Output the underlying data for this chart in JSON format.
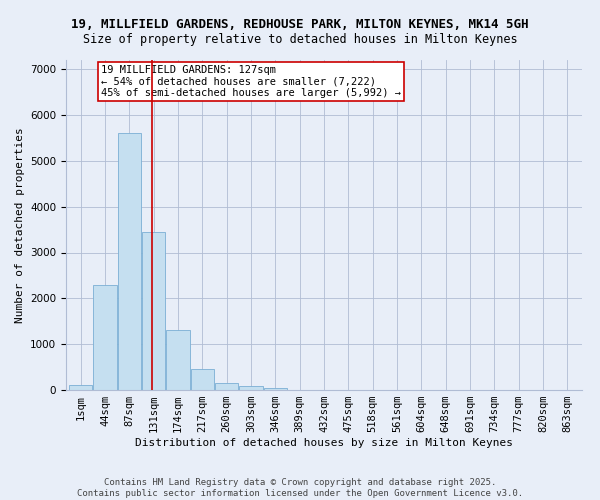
{
  "title1": "19, MILLFIELD GARDENS, REDHOUSE PARK, MILTON KEYNES, MK14 5GH",
  "title2": "Size of property relative to detached houses in Milton Keynes",
  "xlabel": "Distribution of detached houses by size in Milton Keynes",
  "ylabel": "Number of detached properties",
  "footer1": "Contains HM Land Registry data © Crown copyright and database right 2025.",
  "footer2": "Contains public sector information licensed under the Open Government Licence v3.0.",
  "bin_labels": [
    "1sqm",
    "44sqm",
    "87sqm",
    "131sqm",
    "174sqm",
    "217sqm",
    "260sqm",
    "303sqm",
    "346sqm",
    "389sqm",
    "432sqm",
    "475sqm",
    "518sqm",
    "561sqm",
    "604sqm",
    "648sqm",
    "691sqm",
    "734sqm",
    "777sqm",
    "820sqm",
    "863sqm"
  ],
  "bin_values": [
    100,
    2300,
    5600,
    3450,
    1300,
    450,
    150,
    80,
    50,
    0,
    0,
    0,
    0,
    0,
    0,
    0,
    0,
    0,
    0,
    0,
    0
  ],
  "bar_color": "#c5dff0",
  "bar_edgecolor": "#7bafd4",
  "bar_alpha": 1.0,
  "grid_color": "#b0bcd4",
  "bg_color": "#e8eef8",
  "vline_color": "#cc0000",
  "vline_x_index": 2.93,
  "annotation_text": "19 MILLFIELD GARDENS: 127sqm\n← 54% of detached houses are smaller (7,222)\n45% of semi-detached houses are larger (5,992) →",
  "annotation_box_color": "white",
  "annotation_box_edgecolor": "#cc0000",
  "ylim": [
    0,
    7200
  ],
  "yticks": [
    0,
    1000,
    2000,
    3000,
    4000,
    5000,
    6000,
    7000
  ],
  "title1_fontsize": 9,
  "title2_fontsize": 8.5,
  "axis_label_fontsize": 8,
  "tick_fontsize": 7.5,
  "annotation_fontsize": 7.5,
  "footer_fontsize": 6.5
}
